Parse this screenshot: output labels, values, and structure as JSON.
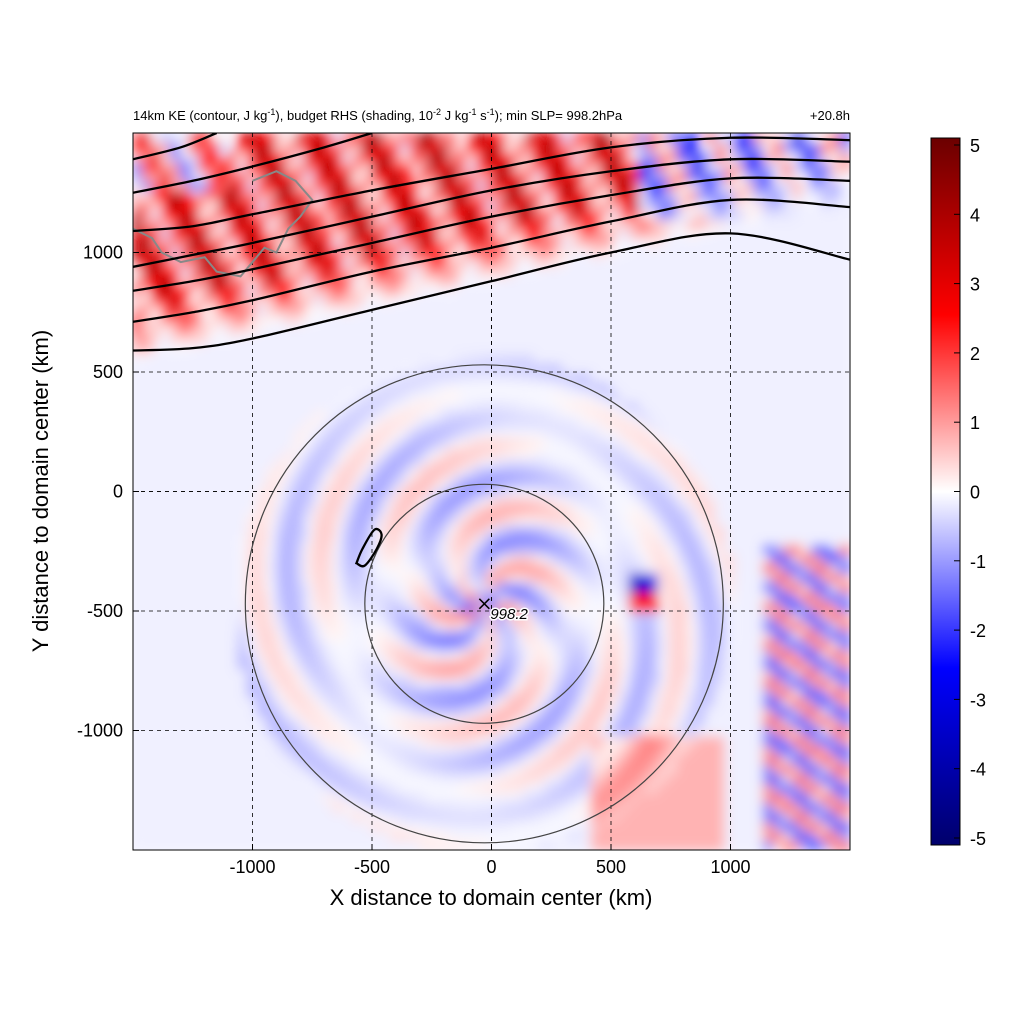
{
  "chart_data": {
    "type": "heatmap",
    "title": {
      "part1": "14km KE (contour, J kg",
      "sup1": "-1",
      "part2": "), budget RHS (shading, 10",
      "sup2": "-2",
      "part3": " J kg",
      "sup3": "-1",
      "part4": " s",
      "sup4": "-1",
      "part5": "); min SLP= 998.2hPa"
    },
    "time_label": "+20.8h",
    "xlabel": "X distance to domain center (km)",
    "ylabel": "Y distance to domain center (km)",
    "xlim": [
      -1500,
      1500
    ],
    "ylim": [
      -1500,
      1500
    ],
    "x_ticks": [
      -1000,
      -500,
      0,
      500,
      1000
    ],
    "y_ticks": [
      -1000,
      -500,
      0,
      500,
      1000
    ],
    "grid": "dashed",
    "colorbar": {
      "min": -5,
      "max": 5,
      "ticks": [
        5,
        4,
        3,
        2,
        1,
        0,
        -1,
        -2,
        -3,
        -4,
        -5
      ],
      "colors": [
        "#00006b",
        "#0000ff",
        "#ffffff",
        "#ff0000",
        "#6b0000"
      ]
    },
    "center_marker": {
      "x": -30,
      "y": -470,
      "label": "998.2"
    },
    "range_circles_km": [
      500,
      1000
    ],
    "ke_contours": [
      [
        [
          -1500,
          590
        ],
        [
          -1250,
          600
        ],
        [
          -1000,
          640
        ],
        [
          -500,
          760
        ],
        [
          0,
          880
        ],
        [
          500,
          1000
        ],
        [
          1000,
          1080
        ],
        [
          1500,
          970
        ]
      ],
      [
        [
          -1500,
          710
        ],
        [
          -1250,
          750
        ],
        [
          -1000,
          800
        ],
        [
          -500,
          920
        ],
        [
          0,
          1020
        ],
        [
          500,
          1130
        ],
        [
          1000,
          1220
        ],
        [
          1500,
          1190
        ]
      ],
      [
        [
          -1500,
          840
        ],
        [
          -1250,
          880
        ],
        [
          -1000,
          930
        ],
        [
          -500,
          1040
        ],
        [
          0,
          1150
        ],
        [
          500,
          1240
        ],
        [
          1000,
          1310
        ],
        [
          1500,
          1300
        ]
      ],
      [
        [
          -1500,
          940
        ],
        [
          -1250,
          990
        ],
        [
          -1000,
          1040
        ],
        [
          -500,
          1150
        ],
        [
          0,
          1260
        ],
        [
          500,
          1340
        ],
        [
          1000,
          1390
        ],
        [
          1500,
          1380
        ]
      ],
      [
        [
          -1500,
          1090
        ],
        [
          -1250,
          1110
        ],
        [
          -1000,
          1160
        ],
        [
          -500,
          1260
        ],
        [
          0,
          1350
        ],
        [
          500,
          1440
        ],
        [
          1000,
          1480
        ],
        [
          1500,
          1470
        ]
      ],
      [
        [
          -1500,
          1250
        ],
        [
          -1250,
          1300
        ],
        [
          -1000,
          1360
        ],
        [
          -700,
          1440
        ],
        [
          -500,
          1500
        ]
      ],
      [
        [
          -1500,
          1390
        ],
        [
          -1300,
          1440
        ],
        [
          -1150,
          1500
        ]
      ]
    ],
    "ke_small_contour": [
      [
        -565,
        -300
      ],
      [
        -540,
        -240
      ],
      [
        -490,
        -160
      ],
      [
        -460,
        -180
      ],
      [
        -480,
        -240
      ],
      [
        -530,
        -310
      ],
      [
        -565,
        -300
      ]
    ]
  }
}
